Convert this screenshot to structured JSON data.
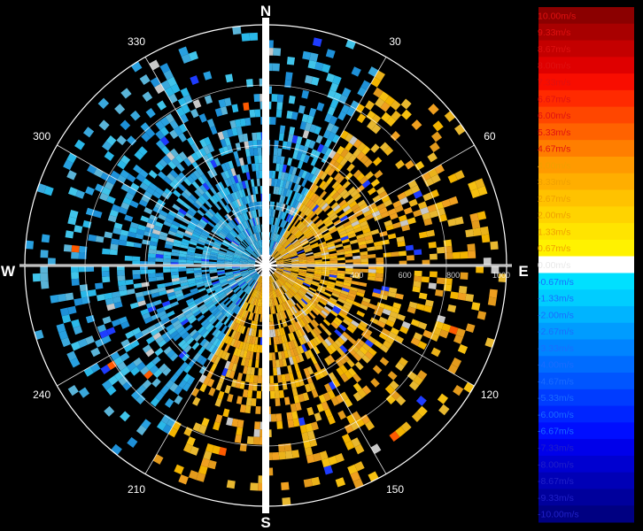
{
  "chart_data": {
    "type": "heatmap",
    "subtype": "polar-radar-velocity",
    "title": "",
    "compass": {
      "north": "N",
      "east": "E",
      "south": "S",
      "west": "W"
    },
    "azimuth_tick_labels": [
      "30",
      "60",
      "120",
      "150",
      "210",
      "240",
      "300",
      "330"
    ],
    "range_tick_labels": [
      "400",
      "600",
      "800",
      "1000"
    ],
    "range_max": 1000,
    "legend_title": "",
    "legend": [
      {
        "label": "10.00m/s",
        "color": "#8b0000"
      },
      {
        "label": "9.33m/s",
        "color": "#a80000"
      },
      {
        "label": "8.67m/s",
        "color": "#c40000"
      },
      {
        "label": "8.00m/s",
        "color": "#df0000"
      },
      {
        "label": "7.33m/s",
        "color": "#f80d00"
      },
      {
        "label": "6.67m/s",
        "color": "#ff2a00"
      },
      {
        "label": "6.00m/s",
        "color": "#ff4600"
      },
      {
        "label": "5.33m/s",
        "color": "#ff6200"
      },
      {
        "label": "4.67m/s",
        "color": "#ff7e00"
      },
      {
        "label": "4.00m/s",
        "color": "#ff9a00"
      },
      {
        "label": "3.33m/s",
        "color": "#ffae00"
      },
      {
        "label": "2.67m/s",
        "color": "#ffc200"
      },
      {
        "label": "2.00m/s",
        "color": "#ffd300"
      },
      {
        "label": "1.33m/s",
        "color": "#ffe400"
      },
      {
        "label": "0.67m/s",
        "color": "#fff200"
      },
      {
        "label": "0.00m/s",
        "color": "#ffffff"
      },
      {
        "label": "-0.67m/s",
        "color": "#00e0ff"
      },
      {
        "label": "-1.33m/s",
        "color": "#00cdff"
      },
      {
        "label": "-2.00m/s",
        "color": "#00b4ff"
      },
      {
        "label": "-2.67m/s",
        "color": "#009cff"
      },
      {
        "label": "-3.33m/s",
        "color": "#0084ff"
      },
      {
        "label": "-4.00m/s",
        "color": "#006cff"
      },
      {
        "label": "-4.67m/s",
        "color": "#0055ff"
      },
      {
        "label": "-5.33m/s",
        "color": "#003cff"
      },
      {
        "label": "-6.00m/s",
        "color": "#0025ff"
      },
      {
        "label": "-6.67m/s",
        "color": "#000eff"
      },
      {
        "label": "-7.33m/s",
        "color": "#0000ea"
      },
      {
        "label": "-8.00m/s",
        "color": "#0000d0"
      },
      {
        "label": "-8.67m/s",
        "color": "#0000b6"
      },
      {
        "label": "-9.33m/s",
        "color": "#00009c"
      },
      {
        "label": "-10.00m/s",
        "color": "#000082"
      }
    ],
    "pattern": {
      "positive_sector_deg": [
        30,
        210
      ],
      "negative_sector_deg": [
        210,
        390
      ],
      "receding_color": "#f0a800",
      "approaching_color": "#2ab0e8"
    }
  }
}
